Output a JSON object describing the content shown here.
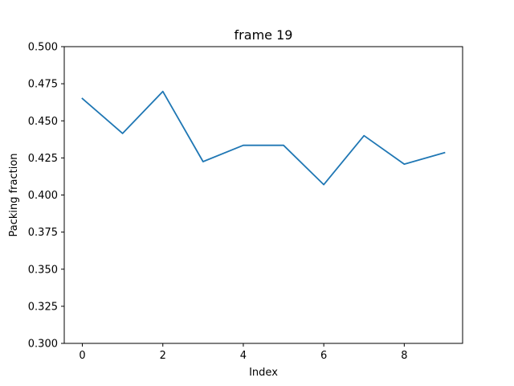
{
  "chart_data": {
    "type": "line",
    "title": "frame 19",
    "xlabel": "Index",
    "ylabel": "Packing fraction",
    "xlim": [
      -0.45,
      9.45
    ],
    "ylim": [
      0.3,
      0.5
    ],
    "x_ticks": [
      0,
      2,
      4,
      6,
      8
    ],
    "x_tick_labels": [
      "0",
      "2",
      "4",
      "6",
      "8"
    ],
    "y_ticks": [
      0.3,
      0.325,
      0.35,
      0.375,
      0.4,
      0.425,
      0.45,
      0.475,
      0.5
    ],
    "y_tick_labels": [
      "0.300",
      "0.325",
      "0.350",
      "0.375",
      "0.400",
      "0.425",
      "0.450",
      "0.475",
      "0.500"
    ],
    "grid": false,
    "series": [
      {
        "color": "#1f77b4",
        "x": [
          0,
          1,
          2,
          3,
          4,
          5,
          6,
          7,
          8,
          9
        ],
        "values": [
          0.465,
          0.4415,
          0.4698,
          0.4225,
          0.4335,
          0.4335,
          0.407,
          0.44,
          0.4208,
          0.4285
        ]
      }
    ]
  }
}
